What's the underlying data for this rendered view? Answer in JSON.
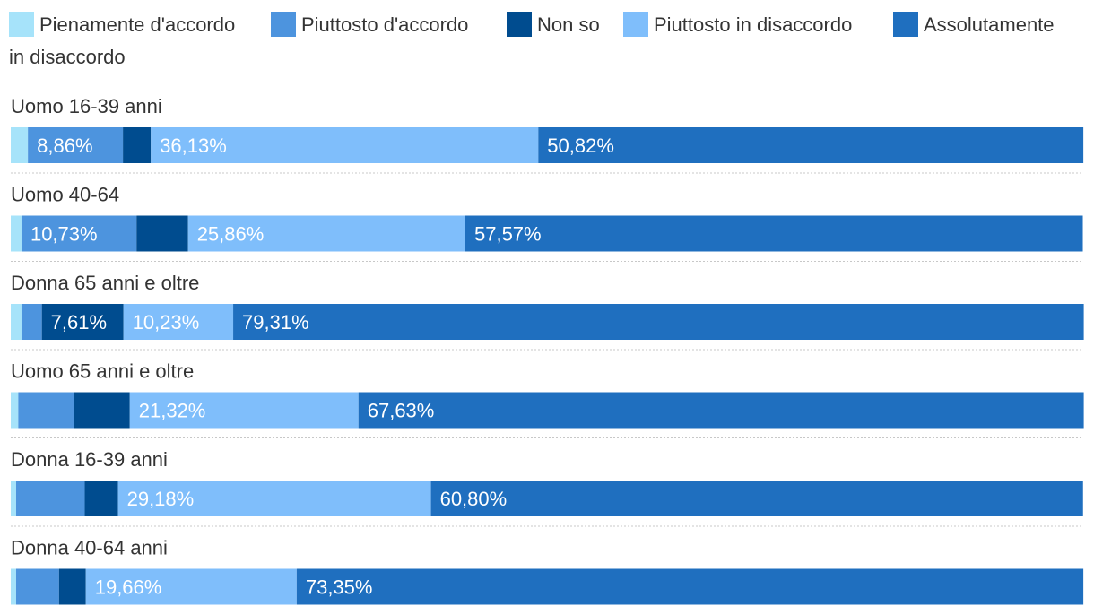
{
  "chart_data": {
    "type": "bar",
    "orientation": "horizontal",
    "stacked": true,
    "categories": [
      "Uomo 16-39 anni",
      "Uomo 40-64",
      "Donna 65 anni e oltre",
      "Uomo 65 anni e oltre",
      "Donna 16-39 anni",
      "Donna 40-64 anni"
    ],
    "series": [
      {
        "name": "Pienamente d'accordo",
        "color": "#a6e3fa",
        "values": [
          1.6,
          1.0,
          1.0,
          0.7,
          0.5,
          0.5
        ],
        "labels": [
          "",
          "",
          "",
          "",
          "",
          ""
        ]
      },
      {
        "name": "Piuttosto d'accordo",
        "color": "#4d94de",
        "values": [
          8.86,
          10.73,
          1.9,
          5.2,
          6.4,
          4.0
        ],
        "labels": [
          "8,86%",
          "10,73%",
          "",
          "",
          "",
          ""
        ]
      },
      {
        "name": "Non so",
        "color": "#004c8f",
        "values": [
          2.6,
          4.8,
          7.61,
          5.2,
          3.1,
          2.5
        ],
        "labels": [
          "",
          "",
          "7,61%",
          "",
          "",
          ""
        ]
      },
      {
        "name": "Piuttosto in disaccordo",
        "color": "#7fbefb",
        "values": [
          36.13,
          25.86,
          10.23,
          21.32,
          29.18,
          19.66
        ],
        "labels": [
          "36,13%",
          "25,86%",
          "10,23%",
          "21,32%",
          "29,18%",
          "19,66%"
        ]
      },
      {
        "name": "Assolutamente in disaccordo",
        "color": "#1f6fbf",
        "values": [
          50.82,
          57.57,
          79.31,
          67.63,
          60.8,
          73.35
        ],
        "labels": [
          "50,82%",
          "57,57%",
          "79,31%",
          "67,63%",
          "60,80%",
          "73,35%"
        ]
      }
    ],
    "xlim": [
      0,
      100
    ],
    "legend_position": "top",
    "legend": {
      "entries": [
        "Pienamente d'accordo",
        "Piuttosto d'accordo",
        "Non so",
        "Piuttosto in disaccordo",
        "Assolutamente",
        "in disaccordo"
      ]
    }
  }
}
